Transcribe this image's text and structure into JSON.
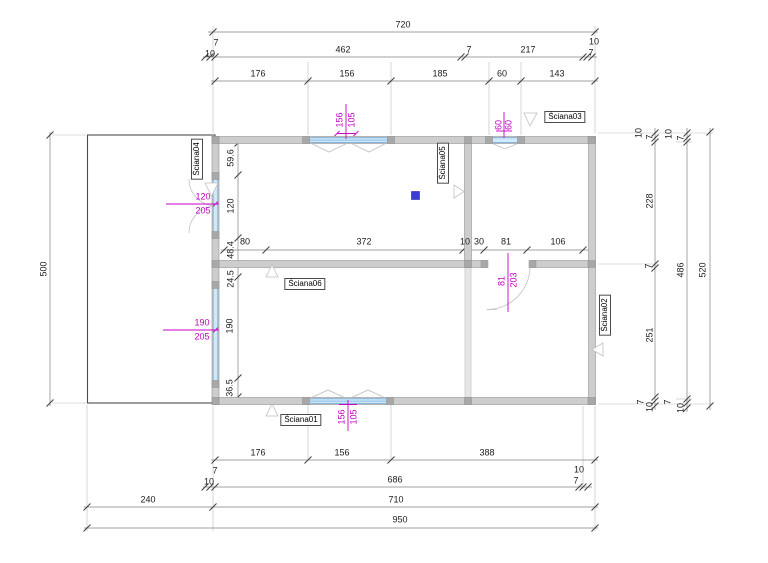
{
  "plan": {
    "wall_labels": {
      "s01": "Ściana01",
      "s02": "Ściana02",
      "s03": "Ściana03",
      "s04": "Ściana04",
      "s05": "Ściana05",
      "s06": "Ściana06"
    },
    "openings": {
      "top_window": {
        "width": "156",
        "height": "105"
      },
      "top_small_window": {
        "width": "60",
        "height": "60"
      },
      "left_door": {
        "width": "120",
        "height": "205"
      },
      "left_window": {
        "width": "190",
        "height": "205"
      },
      "interior_door": {
        "width": "81",
        "height": "203"
      },
      "bottom_window": {
        "width": "156",
        "height": "105"
      }
    },
    "dims": {
      "top": {
        "overall": "720",
        "left7": "7",
        "left10": "10",
        "seg462": "462",
        "mid7": "7",
        "seg217": "217",
        "right10": "10",
        "right7": "7",
        "segments": [
          "176",
          "156",
          "185",
          "60",
          "143"
        ]
      },
      "left": {
        "overall": "500"
      },
      "right": {
        "c1_top10": "10",
        "c1_top7": "7",
        "c1_228": "228",
        "c1_mid7": "7",
        "c1_251": "251",
        "c1_bot7": "7",
        "c1_bot10": "10",
        "c2_top10": "10",
        "c2_top7": "7",
        "c2_486": "486",
        "c2_bot7": "7",
        "c2_bot10": "10",
        "c3_520": "520"
      },
      "bottom": {
        "segments": [
          "176",
          "156",
          "388"
        ],
        "left7": "7",
        "left10": "10",
        "seg686": "686",
        "right10": "10",
        "right7": "7",
        "seg240": "240",
        "seg710": "710",
        "overall": "950"
      },
      "interior": {
        "left_col": [
          "59.6",
          "120",
          "48.4",
          "24.5",
          "190",
          "36.5"
        ],
        "mid_row": [
          "80",
          "372",
          "10",
          "30",
          "81",
          "106"
        ]
      }
    }
  }
}
